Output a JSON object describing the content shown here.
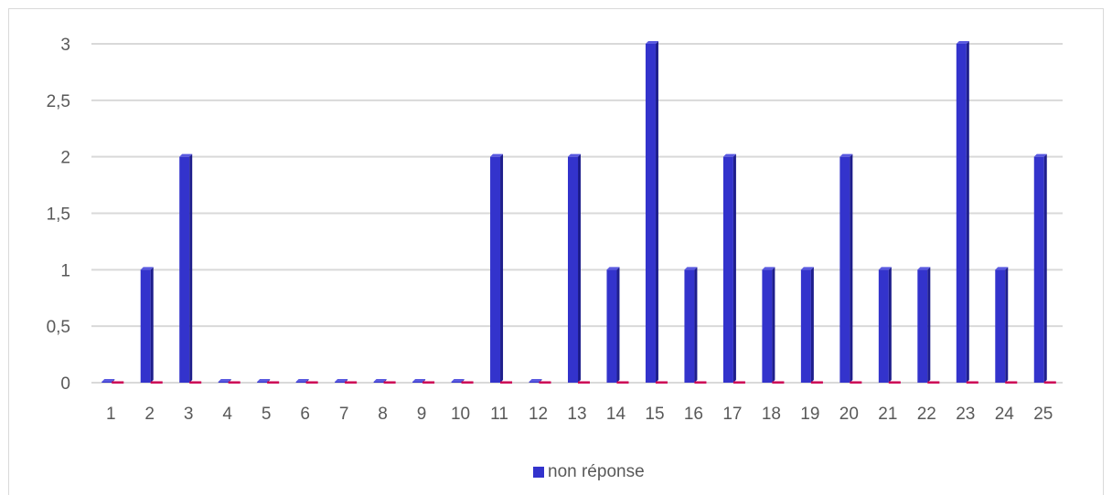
{
  "chart_data": {
    "type": "bar",
    "categories": [
      "1",
      "2",
      "3",
      "4",
      "5",
      "6",
      "7",
      "8",
      "9",
      "10",
      "11",
      "12",
      "13",
      "14",
      "15",
      "16",
      "17",
      "18",
      "19",
      "20",
      "21",
      "22",
      "23",
      "24",
      "25"
    ],
    "series": [
      {
        "name": "non réponse",
        "values": [
          0,
          1,
          2,
          0,
          0,
          0,
          0,
          0,
          0,
          0,
          2,
          0,
          2,
          1,
          3,
          1,
          2,
          1,
          1,
          2,
          1,
          1,
          3,
          1,
          2
        ],
        "color": "#3333cc"
      },
      {
        "values": [
          0,
          0,
          0,
          0,
          0,
          0,
          0,
          0,
          0,
          0,
          0,
          0,
          0,
          0,
          0,
          0,
          0,
          0,
          0,
          0,
          0,
          0,
          0,
          0,
          0
        ],
        "color": "#cc0055"
      }
    ],
    "yticks": [
      "0",
      "0,5",
      "1",
      "1,5",
      "2",
      "2,5",
      "3"
    ],
    "ylim": [
      0,
      3
    ],
    "grid": true,
    "legend_position": "bottom",
    "legend_label": "non réponse"
  },
  "colors": {
    "series1": "#3333cc",
    "series1_side": "#1e1e8c",
    "series1_top": "#5a5ae0",
    "series2": "#cc0055",
    "grid": "#d9d9d9"
  }
}
